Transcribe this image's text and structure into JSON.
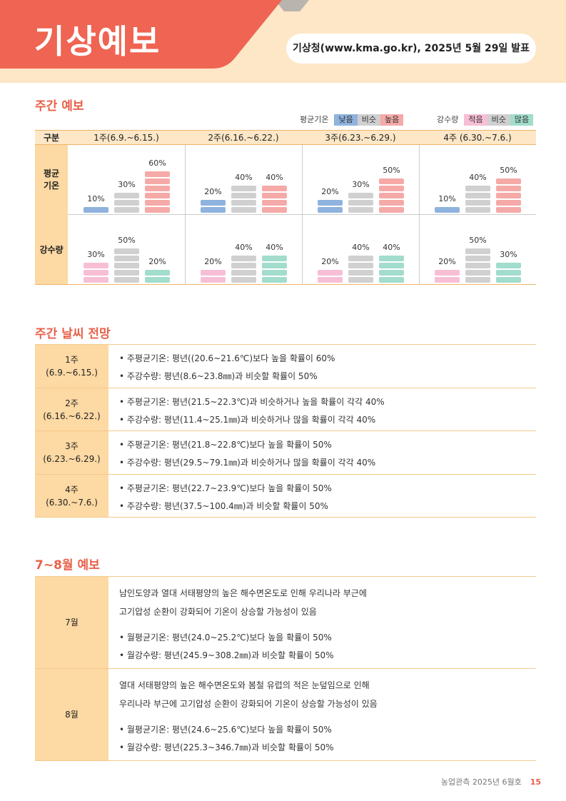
{
  "header": {
    "title": "기상예보",
    "source": "기상청(www.kma.go.kr), 2025년 5월 29일 발표"
  },
  "weekly_forecast": {
    "title": "주간 예보",
    "legend_temp": {
      "label": "평균기온",
      "items": [
        "낮음",
        "비슷",
        "높음"
      ]
    },
    "legend_rain": {
      "label": "강수량",
      "items": [
        "적음",
        "비슷",
        "많음"
      ]
    },
    "colors": {
      "temp_low": "#8fb3de",
      "similar": "#d0d0d0",
      "temp_high": "#f5aaa8",
      "rain_low": "#f7bfd6",
      "rain_high": "#a2dccc"
    },
    "header_label": "구분",
    "weeks": [
      "1주(6.9.~6.15.)",
      "2주(6.16.~6.22.)",
      "3주(6.23.~6.29.)",
      "4주 (6.30.~7.6.)"
    ],
    "row_labels": [
      "평균\n기온",
      "강수량"
    ]
  },
  "chart_data": {
    "type": "bar",
    "categories": [
      "1주(6.9.~6.15.)",
      "2주(6.16.~6.22.)",
      "3주(6.23.~6.29.)",
      "4주 (6.30.~7.6.)"
    ],
    "series": [
      {
        "name": "평균기온 낮음",
        "values": [
          10,
          20,
          20,
          10
        ]
      },
      {
        "name": "평균기온 비슷",
        "values": [
          30,
          40,
          30,
          40
        ]
      },
      {
        "name": "평균기온 높음",
        "values": [
          60,
          40,
          50,
          50
        ]
      },
      {
        "name": "강수량 적음",
        "values": [
          30,
          20,
          20,
          20
        ]
      },
      {
        "name": "강수량 비슷",
        "values": [
          50,
          40,
          40,
          50
        ]
      },
      {
        "name": "강수량 많음",
        "values": [
          20,
          40,
          40,
          30
        ]
      }
    ],
    "unit": "%"
  },
  "weekly_outlook": {
    "title": "주간 날씨 전망",
    "rows": [
      {
        "label": "1주\n(6.9.~6.15.)",
        "lines": [
          "• 주평균기온: 평년((20.6~21.6℃)보다 높을 확률이 60%",
          "• 주강수량: 평년(8.6~23.8㎜)과 비슷할 확률이 50%"
        ]
      },
      {
        "label": "2주\n(6.16.~6.22.)",
        "lines": [
          "• 주평균기온: 평년(21.5~22.3℃)과 비슷하거나 높을 확률이 각각 40%",
          "• 주강수량: 평년(11.4~25.1㎜)과 비슷하거나 많을 확률이 각각 40%"
        ]
      },
      {
        "label": "3주\n(6.23.~6.29.)",
        "lines": [
          "• 주평균기온: 평년(21.8~22.8℃)보다 높을 확률이 50%",
          "• 주강수량: 평년(29.5~79.1㎜)과 비슷하거나 많을 확률이 각각 40%"
        ]
      },
      {
        "label": "4주\n(6.30.~7.6.)",
        "lines": [
          "• 주평균기온: 평년(22.7~23.9℃)보다 높을 확률이 50%",
          "• 주강수량: 평년(37.5~100.4㎜)과 비슷할 확률이 50%"
        ]
      }
    ]
  },
  "monthly_forecast": {
    "title": "7~8월 예보",
    "rows": [
      {
        "label": "7월",
        "lines": [
          "남인도양과 열대 서태평양의 높은 해수면온도로 인해 우리나라 부근에",
          "고기압성 순환이 강화되어 기온이 상승할 가능성이 있음",
          "• 월평균기온: 평년(24.0~25.2℃)보다 높을 확률이 50%",
          "• 월강수량: 평년(245.9~308.2㎜)과 비슷할 확률이 50%"
        ]
      },
      {
        "label": "8월",
        "lines": [
          "열대 서태평양의 높은 해수면온도와 봄철 유럽의 적은 눈덮임으로 인해",
          "우리나라 부근에 고기압성 순환이 강화되어 기온이 상승할 가능성이 있음",
          "• 월평균기온: 평년(24.6~25.6℃)보다 높을 확률이 50%",
          "• 월강수량: 평년(225.3~346.7㎜)과 비슷할 확률이 50%"
        ]
      }
    ]
  },
  "footer": {
    "text": "농업관측 2025년 6월호",
    "page": "15"
  }
}
